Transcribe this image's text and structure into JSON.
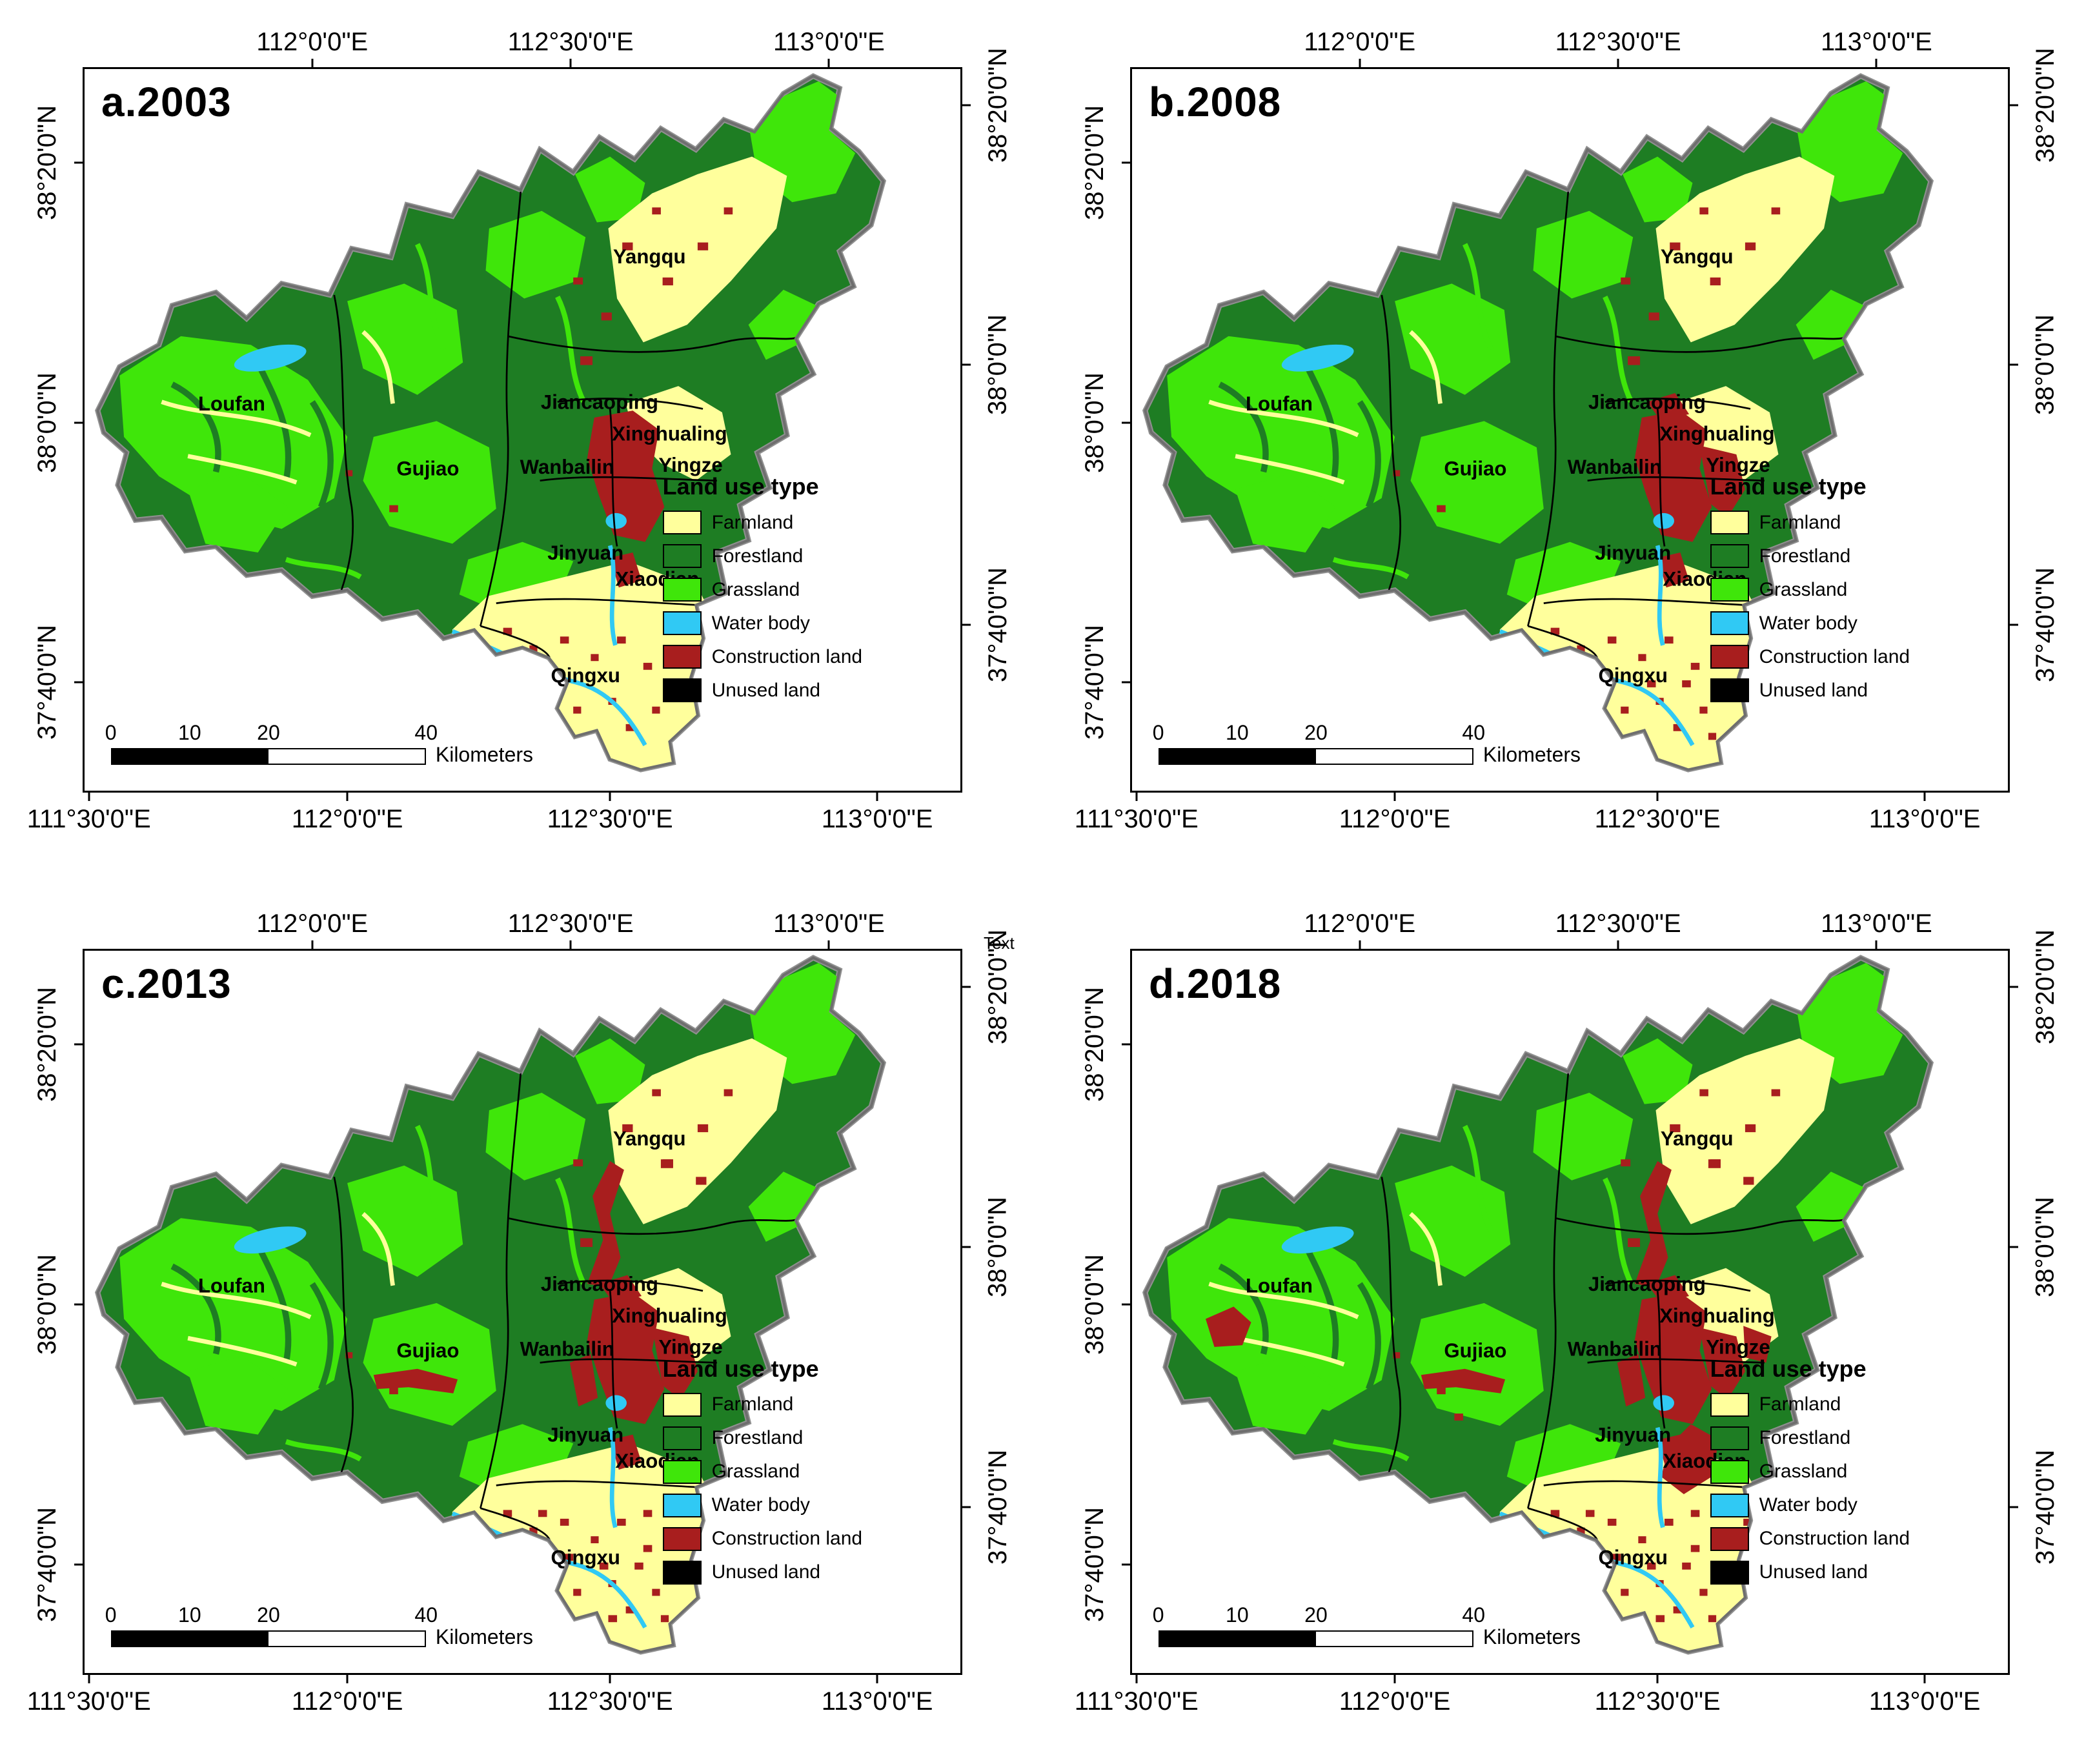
{
  "figure": {
    "panels": [
      {
        "id": "a",
        "label": "a.2003",
        "year": 2003
      },
      {
        "id": "b",
        "label": "b.2008",
        "year": 2008
      },
      {
        "id": "c",
        "label": "c.2013",
        "year": 2013
      },
      {
        "id": "d",
        "label": "d.2018",
        "year": 2018
      }
    ],
    "axis": {
      "top": [
        "112°0'0\"E",
        "112°30'0\"E",
        "113°0'0\"E"
      ],
      "bottom": [
        "111°30'0\"E",
        "112°0'0\"E",
        "112°30'0\"E",
        "113°0'0\"E"
      ],
      "left": [
        "38°20'0\"N",
        "38°0'0\"N",
        "37°40'0\"N"
      ],
      "right": [
        "38°20'0\"N",
        "38°0'0\"N",
        "37°40'0\"N"
      ]
    },
    "legend": {
      "title": "Land use type",
      "items": [
        {
          "label": "Farmland",
          "color": "#FFFF9C"
        },
        {
          "label": "Forestland",
          "color": "#1E7D23"
        },
        {
          "label": "Grassland",
          "color": "#3FE60A"
        },
        {
          "label": "Water body",
          "color": "#30C9F4"
        },
        {
          "label": "Construction land",
          "color": "#A81E1E"
        },
        {
          "label": "Unused land",
          "color": "#000000"
        }
      ]
    },
    "scalebar": {
      "ticks": [
        "0",
        "10",
        "20",
        "40"
      ],
      "unit": "Kilometers"
    },
    "districts": [
      "Yangqu",
      "Loufan",
      "Gujiao",
      "Jiancaoping",
      "Xinghualing",
      "Wanbailin",
      "Yingze",
      "Jinyuan",
      "Xiaodian",
      "Qingxu"
    ],
    "artifact_text": "Text"
  }
}
